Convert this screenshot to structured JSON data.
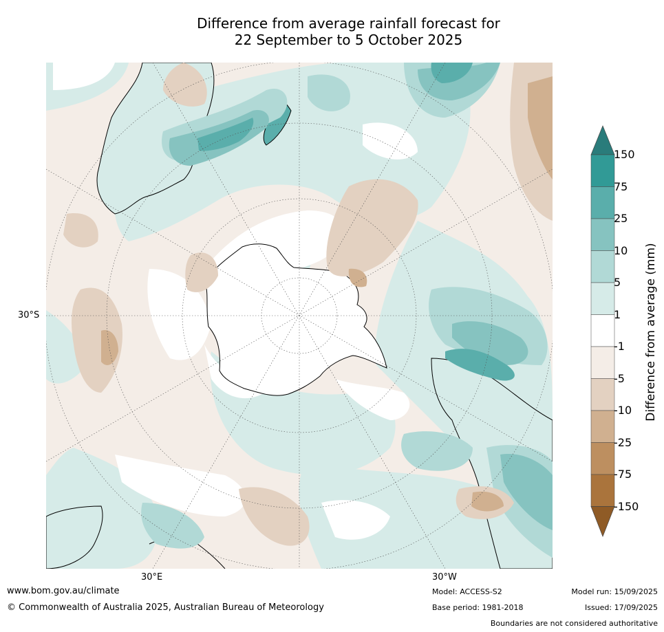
{
  "title_line1": "Difference from average rainfall forecast for",
  "title_line2": "22 September to 5 October 2025",
  "axis_labels": {
    "lat_left": "30°S",
    "lon_left": "30°E",
    "lon_right": "30°W"
  },
  "colorbar": {
    "title": "Difference from average (mm)",
    "labels": [
      "150",
      "75",
      "25",
      "10",
      "5",
      "1",
      "-1",
      "-5",
      "-10",
      "-25",
      "-75",
      "-150"
    ],
    "colors": {
      "over_150": "#2a7c7b",
      "c75_150": "#319a96",
      "c25_75": "#5aaeab",
      "c10_25": "#86c3c0",
      "c5_10": "#b1d9d6",
      "c1_5": "#d6ebe8",
      "neutral": "#ffffff",
      "m1_m5": "#f4ede7",
      "m5_m10": "#e3d1c1",
      "m10_m25": "#d0b090",
      "m25_m75": "#bd8f60",
      "m75_m150": "#aa743c",
      "under_m150": "#8f5b26"
    }
  },
  "footer": {
    "website": "www.bom.gov.au/climate",
    "copyright": "© Commonwealth of Australia 2025, Australian Bureau of Meteorology",
    "model": "Model: ACCESS-S2",
    "base_period": "Base period: 1981-2018",
    "model_run": "Model run: 15/09/2025",
    "issued": "Issued: 17/09/2025",
    "disclaimer": "Boundaries are not considered authoritative"
  }
}
